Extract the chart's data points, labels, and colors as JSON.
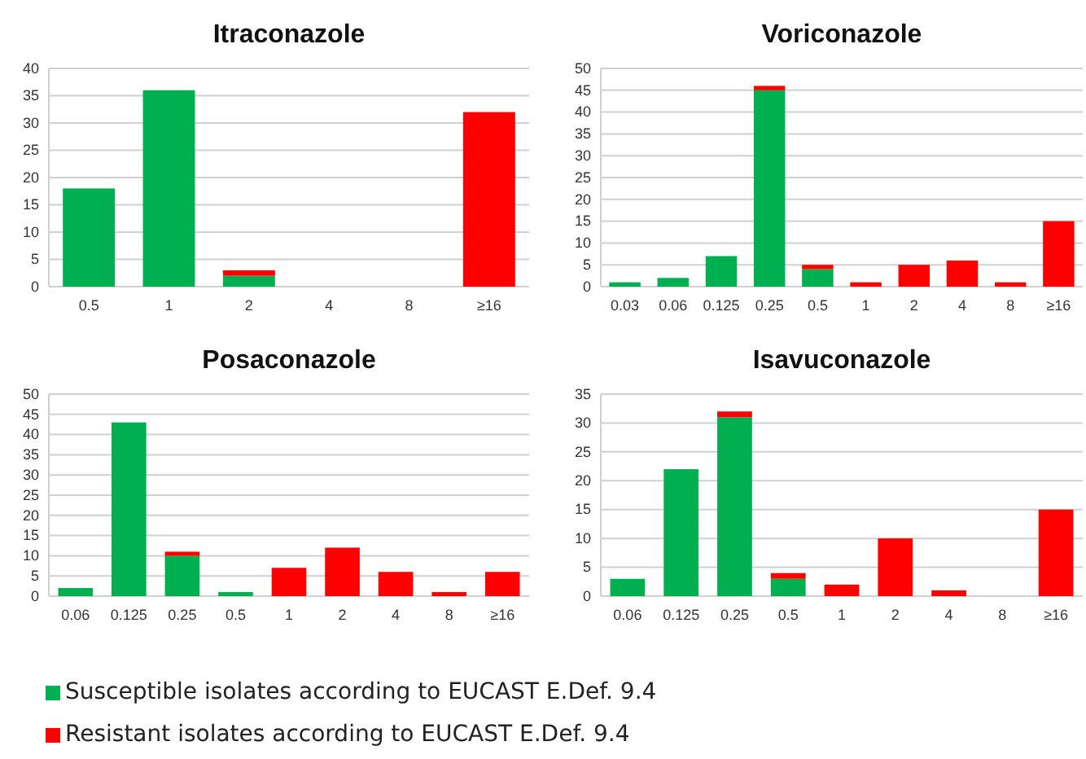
{
  "chart_data": [
    {
      "type": "bar",
      "title": "Itraconazole",
      "stacked": true,
      "grid": "y",
      "legend": "bottom",
      "categories": [
        "0.5",
        "1",
        "2",
        "4",
        "8",
        "≥16"
      ],
      "ylim": [
        0,
        40
      ],
      "yticks": [
        0,
        5,
        10,
        15,
        20,
        25,
        30,
        35,
        40
      ],
      "series": [
        {
          "name": "Susceptible isolates according to EUCAST E.Def. 9.4",
          "color": "#00b050",
          "values": [
            18,
            36,
            2,
            0,
            0,
            0
          ]
        },
        {
          "name": "Resistant isolates according to EUCAST E.Def. 9.4",
          "color": "#ff0000",
          "values": [
            0,
            0,
            1,
            0,
            0,
            32
          ]
        }
      ]
    },
    {
      "type": "bar",
      "title": "Voriconazole",
      "stacked": true,
      "grid": "y",
      "categories": [
        "0.03",
        "0.06",
        "0.125",
        "0.25",
        "0.5",
        "1",
        "2",
        "4",
        "8",
        "≥16"
      ],
      "ylim": [
        0,
        50
      ],
      "yticks": [
        0,
        5,
        10,
        15,
        20,
        25,
        30,
        35,
        40,
        45,
        50
      ],
      "series": [
        {
          "color": "#00b050",
          "values": [
            1,
            2,
            7,
            45,
            4,
            0,
            0,
            0,
            0,
            0
          ]
        },
        {
          "color": "#ff0000",
          "values": [
            0,
            0,
            0,
            1,
            1,
            1,
            5,
            6,
            1,
            15
          ]
        }
      ]
    },
    {
      "type": "bar",
      "title": "Posaconazole",
      "stacked": true,
      "grid": "y",
      "categories": [
        "0.06",
        "0.125",
        "0.25",
        "0.5",
        "1",
        "2",
        "4",
        "8",
        "≥16"
      ],
      "ylim": [
        0,
        50
      ],
      "yticks": [
        0,
        5,
        10,
        15,
        20,
        25,
        30,
        35,
        40,
        45,
        50
      ],
      "series": [
        {
          "color": "#00b050",
          "values": [
            2,
            43,
            10,
            1,
            0,
            0,
            0,
            0,
            0
          ]
        },
        {
          "color": "#ff0000",
          "values": [
            0,
            0,
            1,
            0,
            7,
            12,
            6,
            1,
            6
          ]
        }
      ]
    },
    {
      "type": "bar",
      "title": "Isavuconazole",
      "stacked": true,
      "grid": "y",
      "categories": [
        "0.06",
        "0.125",
        "0.25",
        "0.5",
        "1",
        "2",
        "4",
        "8",
        "≥16"
      ],
      "ylim": [
        0,
        35
      ],
      "yticks": [
        0,
        5,
        10,
        15,
        20,
        25,
        30,
        35
      ],
      "series": [
        {
          "color": "#00b050",
          "values": [
            3,
            22,
            31,
            3,
            0,
            0,
            0,
            0,
            0
          ]
        },
        {
          "color": "#ff0000",
          "values": [
            0,
            0,
            1,
            1,
            2,
            10,
            1,
            0,
            15
          ]
        }
      ]
    }
  ]
}
